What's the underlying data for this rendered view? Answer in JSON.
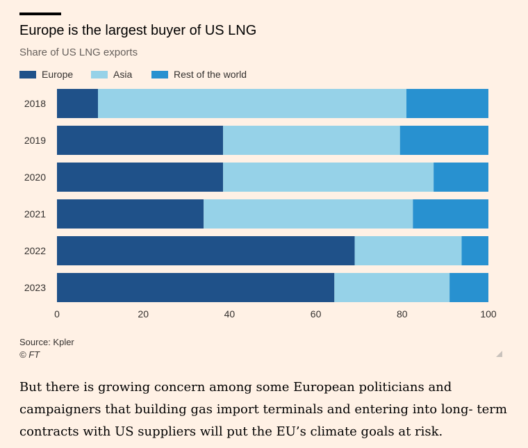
{
  "title": "Europe is the largest buyer of US LNG",
  "subtitle": "Share of US LNG exports",
  "legend": [
    {
      "label": "Europe",
      "color": "#1f5189"
    },
    {
      "label": "Asia",
      "color": "#96d2e8"
    },
    {
      "label": "Rest of the world",
      "color": "#2891d0"
    }
  ],
  "source": "Source: Kpler",
  "copyright": "© FT",
  "paragraph": "But there is growing concern among some European politicians and campaigners that building gas import terminals and entering into long- term contracts with US suppliers will put the EU’s climate goals at risk.",
  "chart_data": {
    "type": "bar",
    "orientation": "horizontal",
    "stacked": true,
    "categories": [
      "2018",
      "2019",
      "2020",
      "2021",
      "2022",
      "2023"
    ],
    "series": [
      {
        "name": "Europe",
        "color": "#1f5189",
        "values": [
          9.5,
          38.5,
          38.5,
          34.0,
          69.0,
          64.3
        ]
      },
      {
        "name": "Asia",
        "color": "#96d2e8",
        "values": [
          71.5,
          41.0,
          48.8,
          48.5,
          24.8,
          26.7
        ]
      },
      {
        "name": "Rest of the world",
        "color": "#2891d0",
        "values": [
          19.0,
          20.5,
          12.7,
          17.5,
          6.2,
          9.0
        ]
      }
    ],
    "xlim": [
      0,
      100
    ],
    "xticks": [
      0,
      20,
      40,
      60,
      80,
      100
    ],
    "legend_position": "top-left",
    "grid": false
  }
}
